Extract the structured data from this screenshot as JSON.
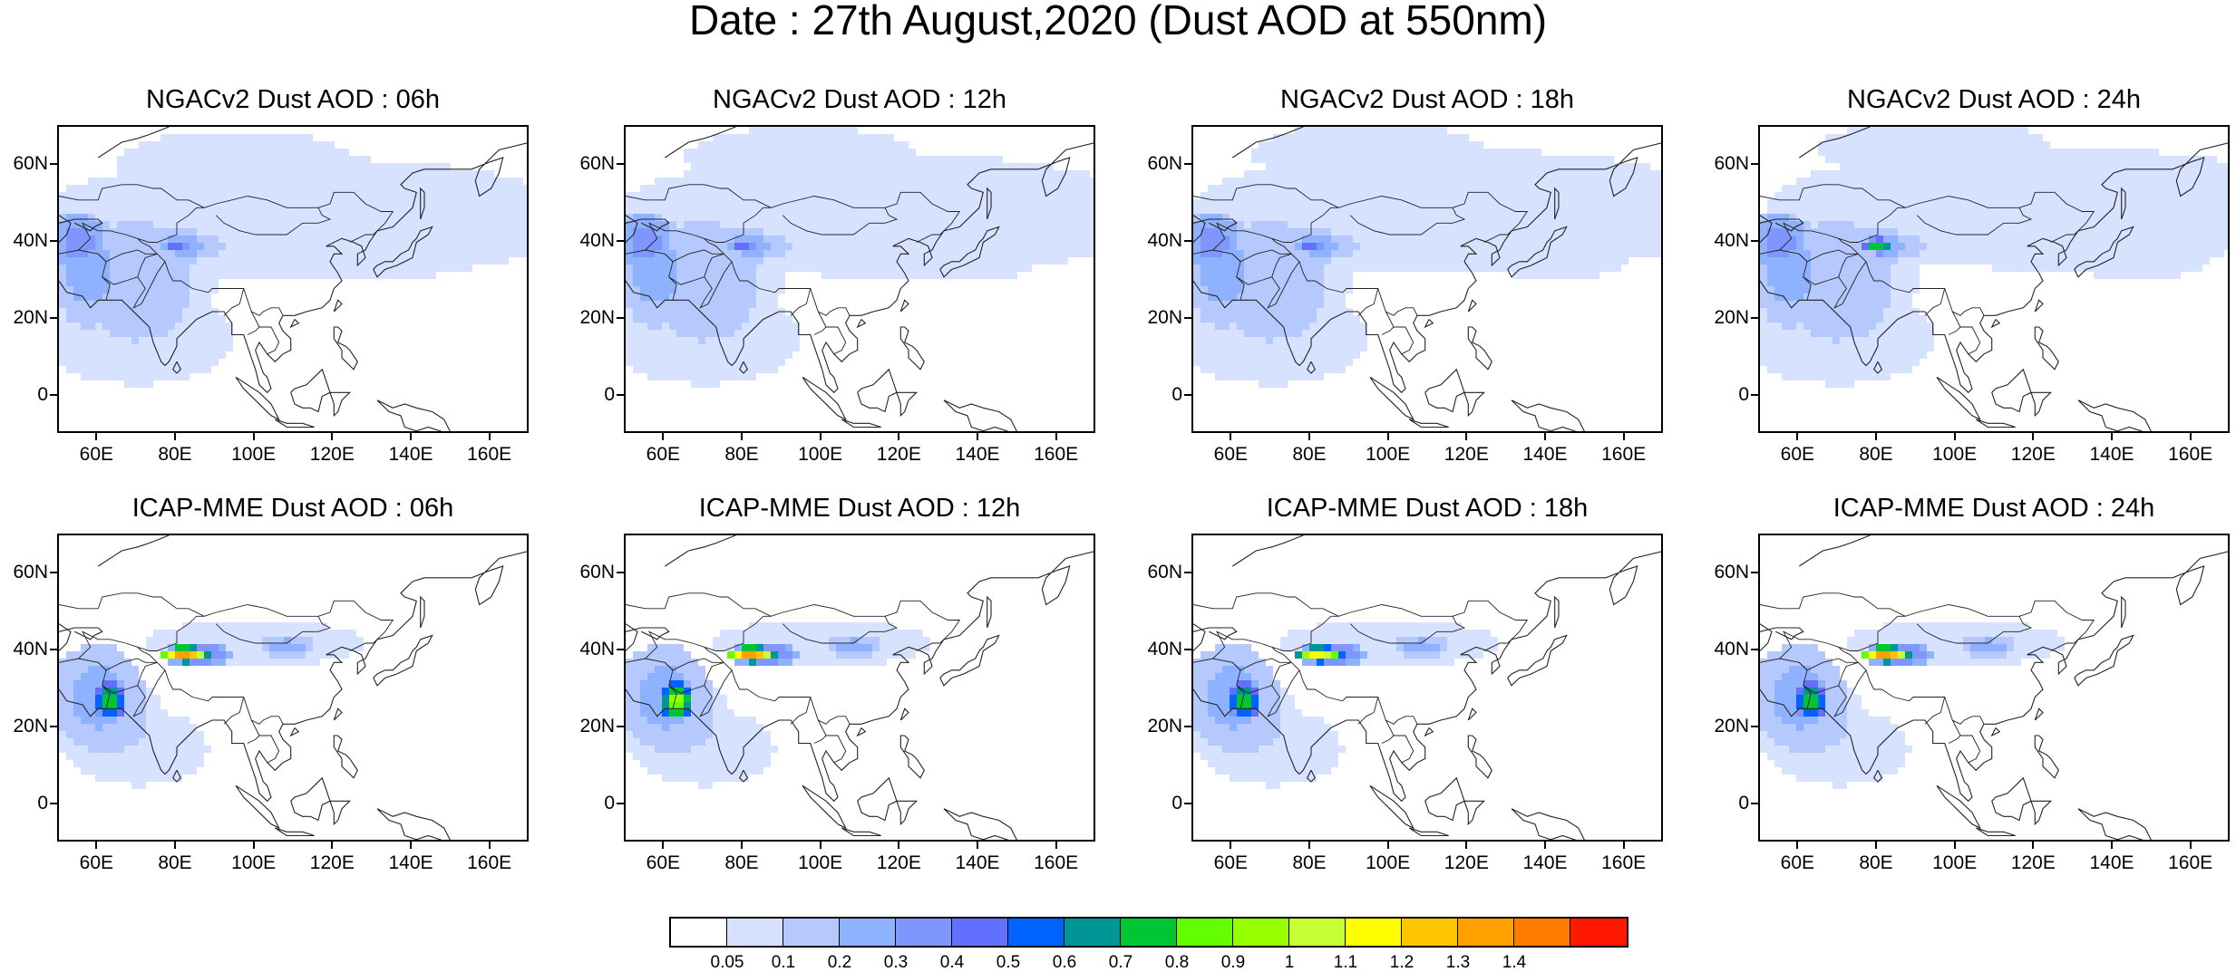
{
  "title": "Date : 27th August,2020 (Dust AOD at 550nm)",
  "panels": [
    {
      "title": "NGACv2 Dust AOD : 06h",
      "model": "ngac",
      "hour": 6
    },
    {
      "title": "NGACv2 Dust AOD : 12h",
      "model": "ngac",
      "hour": 12
    },
    {
      "title": "NGACv2 Dust AOD : 18h",
      "model": "ngac",
      "hour": 18
    },
    {
      "title": "NGACv2 Dust AOD : 24h",
      "model": "ngac",
      "hour": 24
    },
    {
      "title": "ICAP-MME Dust AOD : 06h",
      "model": "icap",
      "hour": 6
    },
    {
      "title": "ICAP-MME Dust AOD : 12h",
      "model": "icap",
      "hour": 12
    },
    {
      "title": "ICAP-MME Dust AOD : 18h",
      "model": "icap",
      "hour": 18
    },
    {
      "title": "ICAP-MME Dust AOD : 24h",
      "model": "icap",
      "hour": 24
    }
  ],
  "map_extent": {
    "lon_min": 50,
    "lon_max": 170,
    "lat_min": -10,
    "lat_max": 70
  },
  "lat_ticks": [
    {
      "value": 60,
      "label": "60N"
    },
    {
      "value": 40,
      "label": "40N"
    },
    {
      "value": 20,
      "label": "20N"
    },
    {
      "value": 0,
      "label": "0"
    }
  ],
  "lon_ticks": [
    {
      "value": 60,
      "label": "60E"
    },
    {
      "value": 80,
      "label": "80E"
    },
    {
      "value": 100,
      "label": "100E"
    },
    {
      "value": 120,
      "label": "120E"
    },
    {
      "value": 140,
      "label": "140E"
    },
    {
      "value": 160,
      "label": "160E"
    }
  ],
  "colorbar": {
    "colors": [
      "#ffffff",
      "#d6e2ff",
      "#b5c9ff",
      "#8eb2ff",
      "#7f96ff",
      "#6370ff",
      "#0063ff",
      "#009696",
      "#00c633",
      "#63ff00",
      "#96ff00",
      "#c6ff33",
      "#ffff00",
      "#ffc600",
      "#ffa000",
      "#ff7c00",
      "#ff1900"
    ],
    "labels": [
      "0.05",
      "0.1",
      "0.2",
      "0.3",
      "0.4",
      "0.5",
      "0.6",
      "0.7",
      "0.8",
      "0.9",
      "1",
      "1.1",
      "1.2",
      "1.3",
      "1.4"
    ]
  }
}
